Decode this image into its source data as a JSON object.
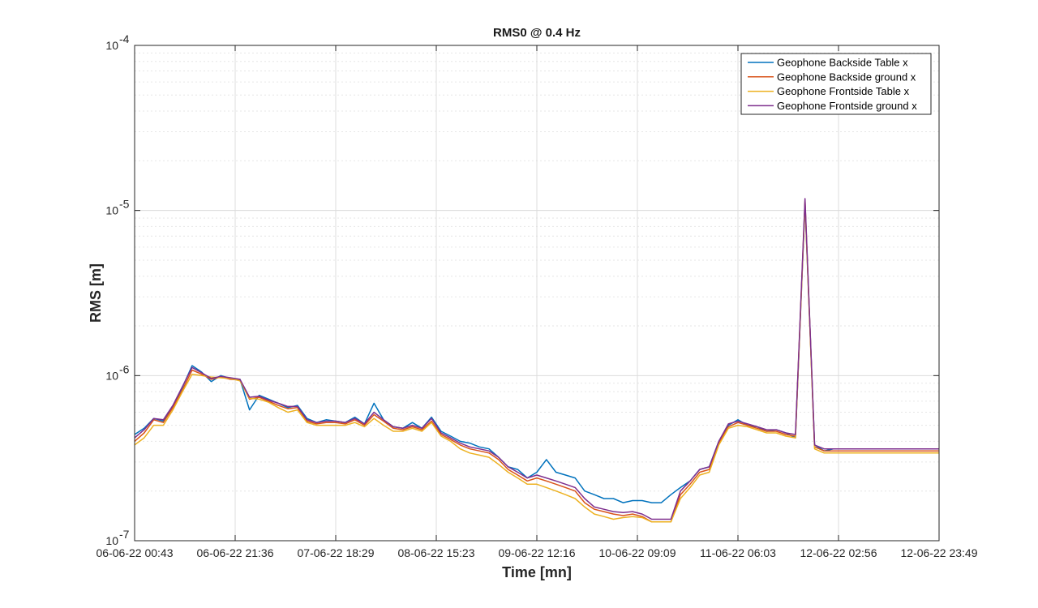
{
  "chart_data": {
    "type": "line",
    "title": "RMS0 @ 0.4 Hz",
    "xlabel": "Time [mn]",
    "ylabel": "RMS [m]",
    "yscale": "log",
    "ylim": [
      1e-07,
      0.0001
    ],
    "y_tick_labels": [
      {
        "base": "10",
        "exp": "-7"
      },
      {
        "base": "10",
        "exp": "-6"
      },
      {
        "base": "10",
        "exp": "-5"
      },
      {
        "base": "10",
        "exp": "-4"
      }
    ],
    "x_tick_labels": [
      "06-06-22 00:43",
      "06-06-22 21:36",
      "07-06-22 18:29",
      "08-06-22 15:23",
      "09-06-22 12:16",
      "10-06-22 09:09",
      "11-06-22 06:03",
      "12-06-22 02:56",
      "12-06-22 23:49"
    ],
    "x_hours": [
      0,
      2,
      4,
      6,
      8,
      10,
      12,
      14,
      16,
      18,
      20,
      22,
      24,
      26,
      28,
      30,
      32,
      34,
      36,
      38,
      40,
      42,
      44,
      46,
      48,
      50,
      52,
      54,
      56,
      58,
      60,
      62,
      64,
      66,
      68,
      70,
      72,
      74,
      76,
      78,
      80,
      82,
      84,
      86,
      88,
      90,
      92,
      94,
      96,
      98,
      100,
      102,
      104,
      106,
      108,
      110,
      112,
      114,
      116,
      118,
      120,
      122,
      124,
      126,
      128,
      130,
      132,
      134,
      136,
      138,
      140,
      142,
      144,
      146,
      148,
      150,
      152,
      154,
      156,
      158,
      160,
      162,
      164,
      166,
      168
    ],
    "grid": true,
    "legend_position": "top-right",
    "series": [
      {
        "name": "Geophone Backside Table x",
        "color": "#0072BD",
        "values": [
          4.4e-07,
          4.8e-07,
          5.5e-07,
          5.3e-07,
          6.5e-07,
          8.5e-07,
          1.15e-06,
          1.05e-06,
          9.2e-07,
          1e-06,
          9.6e-07,
          9.5e-07,
          6.2e-07,
          7.6e-07,
          7.2e-07,
          6.8e-07,
          6.4e-07,
          6.6e-07,
          5.5e-07,
          5.2e-07,
          5.4e-07,
          5.3e-07,
          5.2e-07,
          5.6e-07,
          5.1e-07,
          6.8e-07,
          5.4e-07,
          4.9e-07,
          4.8e-07,
          5.2e-07,
          4.8e-07,
          5.6e-07,
          4.6e-07,
          4.3e-07,
          4e-07,
          3.9e-07,
          3.7e-07,
          3.6e-07,
          3.2e-07,
          2.8e-07,
          2.7e-07,
          2.4e-07,
          2.6e-07,
          3.1e-07,
          2.6e-07,
          2.5e-07,
          2.4e-07,
          2e-07,
          1.9e-07,
          1.8e-07,
          1.8e-07,
          1.7e-07,
          1.75e-07,
          1.75e-07,
          1.7e-07,
          1.7e-07,
          1.9e-07,
          2.1e-07,
          2.3e-07,
          2.7e-07,
          2.8e-07,
          4e-07,
          5e-07,
          5.4e-07,
          5e-07,
          4.9e-07,
          4.6e-07,
          4.7e-07,
          4.5e-07,
          4.2e-07,
          1.1e-05,
          3.8e-07,
          3.5e-07,
          3.6e-07,
          3.6e-07,
          3.6e-07,
          3.6e-07,
          3.6e-07,
          3.6e-07,
          3.6e-07,
          3.6e-07,
          3.6e-07,
          3.6e-07,
          3.6e-07,
          3.6e-07
        ]
      },
      {
        "name": "Geophone Backside ground x",
        "color": "#D95319",
        "values": [
          4e-07,
          4.5e-07,
          5.4e-07,
          5.2e-07,
          6.4e-07,
          8.2e-07,
          1.08e-06,
          1.02e-06,
          9.5e-07,
          9.8e-07,
          9.5e-07,
          9.4e-07,
          7.2e-07,
          7.4e-07,
          7e-07,
          6.6e-07,
          6.3e-07,
          6.4e-07,
          5.3e-07,
          5.1e-07,
          5.2e-07,
          5.2e-07,
          5.1e-07,
          5.4e-07,
          5e-07,
          5.8e-07,
          5.3e-07,
          4.8e-07,
          4.7e-07,
          4.9e-07,
          4.7e-07,
          5.3e-07,
          4.4e-07,
          4.1e-07,
          3.8e-07,
          3.6e-07,
          3.5e-07,
          3.4e-07,
          3.1e-07,
          2.7e-07,
          2.5e-07,
          2.3e-07,
          2.4e-07,
          2.3e-07,
          2.2e-07,
          2.1e-07,
          2e-07,
          1.7e-07,
          1.55e-07,
          1.5e-07,
          1.45e-07,
          1.42e-07,
          1.45e-07,
          1.4e-07,
          1.3e-07,
          1.3e-07,
          1.3e-07,
          1.9e-07,
          2.2e-07,
          2.6e-07,
          2.7e-07,
          3.9e-07,
          4.9e-07,
          5.2e-07,
          5e-07,
          4.8e-07,
          4.6e-07,
          4.6e-07,
          4.4e-07,
          4.3e-07,
          1.15e-05,
          3.7e-07,
          3.5e-07,
          3.5e-07,
          3.5e-07,
          3.5e-07,
          3.5e-07,
          3.5e-07,
          3.5e-07,
          3.5e-07,
          3.5e-07,
          3.5e-07,
          3.5e-07,
          3.5e-07,
          3.5e-07
        ]
      },
      {
        "name": "Geophone Frontside Table x",
        "color": "#EDB120",
        "values": [
          3.8e-07,
          4.2e-07,
          5e-07,
          5e-07,
          6.2e-07,
          8e-07,
          1.02e-06,
          1e-06,
          9.8e-07,
          9.7e-07,
          9.6e-07,
          9.3e-07,
          7.3e-07,
          7.2e-07,
          6.9e-07,
          6.4e-07,
          6e-07,
          6.2e-07,
          5.2e-07,
          5e-07,
          5e-07,
          5e-07,
          5e-07,
          5.2e-07,
          4.9e-07,
          5.5e-07,
          5e-07,
          4.6e-07,
          4.6e-07,
          4.8e-07,
          4.6e-07,
          5.2e-07,
          4.3e-07,
          4e-07,
          3.6e-07,
          3.4e-07,
          3.3e-07,
          3.2e-07,
          2.9e-07,
          2.6e-07,
          2.4e-07,
          2.2e-07,
          2.2e-07,
          2.1e-07,
          2e-07,
          1.9e-07,
          1.8e-07,
          1.6e-07,
          1.45e-07,
          1.4e-07,
          1.35e-07,
          1.38e-07,
          1.4e-07,
          1.38e-07,
          1.3e-07,
          1.3e-07,
          1.3e-07,
          1.8e-07,
          2.1e-07,
          2.5e-07,
          2.6e-07,
          3.8e-07,
          4.8e-07,
          5e-07,
          4.9e-07,
          4.7e-07,
          4.5e-07,
          4.5e-07,
          4.3e-07,
          4.2e-07,
          1.1e-05,
          3.6e-07,
          3.4e-07,
          3.4e-07,
          3.4e-07,
          3.4e-07,
          3.4e-07,
          3.4e-07,
          3.4e-07,
          3.4e-07,
          3.4e-07,
          3.4e-07,
          3.4e-07,
          3.4e-07,
          3.4e-07
        ]
      },
      {
        "name": "Geophone Frontside ground x",
        "color": "#7E2F8E",
        "values": [
          4.2e-07,
          4.7e-07,
          5.5e-07,
          5.4e-07,
          6.6e-07,
          8.6e-07,
          1.12e-06,
          1.04e-06,
          9.6e-07,
          9.9e-07,
          9.7e-07,
          9.5e-07,
          7.4e-07,
          7.5e-07,
          7.1e-07,
          6.8e-07,
          6.5e-07,
          6.5e-07,
          5.4e-07,
          5.2e-07,
          5.3e-07,
          5.3e-07,
          5.2e-07,
          5.5e-07,
          5.1e-07,
          6e-07,
          5.4e-07,
          4.9e-07,
          4.8e-07,
          5e-07,
          4.8e-07,
          5.5e-07,
          4.5e-07,
          4.2e-07,
          3.9e-07,
          3.7e-07,
          3.6e-07,
          3.5e-07,
          3.2e-07,
          2.8e-07,
          2.6e-07,
          2.4e-07,
          2.5e-07,
          2.4e-07,
          2.3e-07,
          2.2e-07,
          2.1e-07,
          1.8e-07,
          1.6e-07,
          1.55e-07,
          1.5e-07,
          1.48e-07,
          1.5e-07,
          1.45e-07,
          1.35e-07,
          1.35e-07,
          1.35e-07,
          2e-07,
          2.3e-07,
          2.7e-07,
          2.8e-07,
          4e-07,
          5.1e-07,
          5.3e-07,
          5.1e-07,
          4.9e-07,
          4.7e-07,
          4.7e-07,
          4.5e-07,
          4.4e-07,
          1.18e-05,
          3.8e-07,
          3.6e-07,
          3.6e-07,
          3.6e-07,
          3.6e-07,
          3.6e-07,
          3.6e-07,
          3.6e-07,
          3.6e-07,
          3.6e-07,
          3.6e-07,
          3.6e-07,
          3.6e-07,
          3.6e-07
        ]
      }
    ]
  }
}
